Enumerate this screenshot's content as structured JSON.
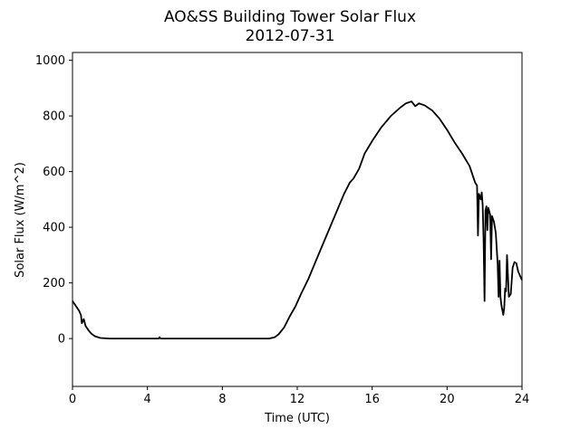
{
  "chart_data": {
    "type": "line",
    "title": "AO&SS Building Tower Solar Flux",
    "subtitle": "2012-07-31",
    "x_label": "Time (UTC)",
    "y_label": "Solar Flux (W/m^2)",
    "xlim": [
      0,
      24
    ],
    "xticks": [
      0,
      4,
      8,
      12,
      16,
      20,
      24
    ],
    "ylim": [
      -172,
      1028
    ],
    "yticks": [
      0,
      200,
      400,
      600,
      800,
      1000
    ],
    "series": [
      {
        "color": "#000000",
        "x": [
          0,
          0.2,
          0.35,
          0.45,
          0.5,
          0.6,
          0.7,
          0.85,
          1.0,
          1.2,
          1.5,
          2,
          4.6,
          4.65,
          4.7,
          10.5,
          10.8,
          11,
          11.3,
          11.6,
          11.9,
          12.2,
          12.6,
          13,
          13.5,
          14,
          14.5,
          14.8,
          15,
          15.3,
          15.6,
          16,
          16.5,
          17,
          17.5,
          17.8,
          18.1,
          18.3,
          18.5,
          18.8,
          19.2,
          19.6,
          20,
          20.4,
          20.8,
          21.2,
          21.5,
          21.6,
          21.65,
          21.7,
          21.8,
          21.85,
          21.9,
          21.95,
          22,
          22.05,
          22.1,
          22.15,
          22.2,
          22.3,
          22.35,
          22.4,
          22.5,
          22.6,
          22.7,
          22.75,
          22.8,
          22.85,
          22.9,
          23.0,
          23.05,
          23.1,
          23.15,
          23.2,
          23.3,
          23.4,
          23.5,
          23.6,
          23.7,
          23.8,
          24
        ],
        "values": [
          135,
          115,
          100,
          85,
          55,
          70,
          45,
          30,
          18,
          8,
          2,
          0,
          0,
          5,
          0,
          0,
          5,
          15,
          40,
          80,
          115,
          160,
          215,
          280,
          360,
          440,
          520,
          560,
          575,
          610,
          665,
          710,
          760,
          800,
          830,
          845,
          852,
          835,
          845,
          838,
          820,
          790,
          750,
          705,
          665,
          620,
          560,
          550,
          370,
          520,
          500,
          525,
          480,
          350,
          135,
          460,
          475,
          390,
          470,
          445,
          285,
          440,
          420,
          380,
          270,
          150,
          280,
          150,
          120,
          85,
          110,
          180,
          170,
          300,
          150,
          160,
          255,
          275,
          270,
          240,
          210
        ]
      }
    ]
  }
}
